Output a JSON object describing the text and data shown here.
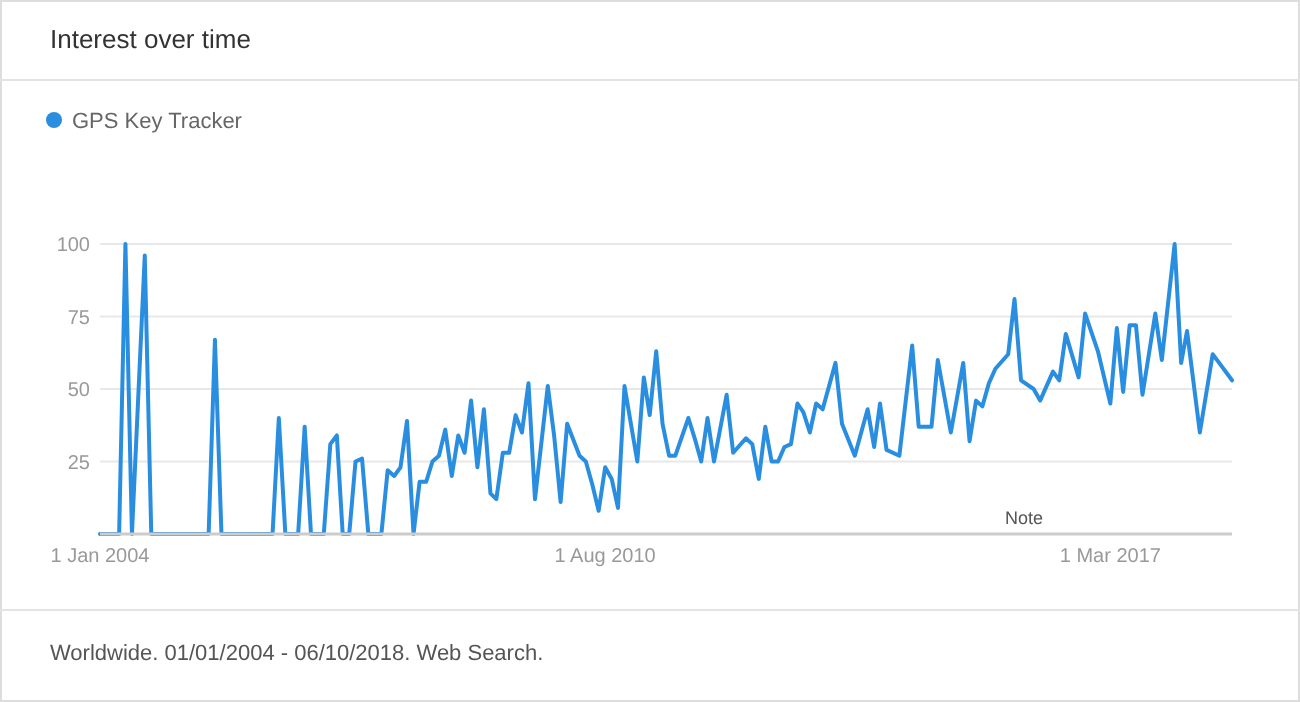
{
  "chart_data": {
    "type": "line",
    "title": "Interest over time",
    "x": [
      "2004-01",
      "2004-04",
      "2004-05",
      "2004-06",
      "2004-08",
      "2004-09",
      "2005-06",
      "2005-07",
      "2005-08",
      "2006-04",
      "2006-05",
      "2006-06",
      "2006-08",
      "2006-09",
      "2006-10",
      "2006-12",
      "2007-01",
      "2007-02",
      "2007-03",
      "2007-04",
      "2007-05",
      "2007-06",
      "2007-07",
      "2007-09",
      "2007-10",
      "2007-11",
      "2007-12",
      "2008-01",
      "2008-02",
      "2008-03",
      "2008-04",
      "2008-05",
      "2008-06",
      "2008-07",
      "2008-08",
      "2008-09",
      "2008-10",
      "2008-11",
      "2008-12",
      "2009-01",
      "2009-02",
      "2009-03",
      "2009-04",
      "2009-05",
      "2009-06",
      "2009-07",
      "2009-08",
      "2009-09",
      "2009-11",
      "2009-12",
      "2010-01",
      "2010-02",
      "2010-04",
      "2010-05",
      "2010-06",
      "2010-07",
      "2010-08",
      "2010-09",
      "2010-10",
      "2010-11",
      "2011-01",
      "2011-02",
      "2011-03",
      "2011-04",
      "2011-05",
      "2011-06",
      "2011-07",
      "2011-09",
      "2011-10",
      "2011-11",
      "2011-12",
      "2012-01",
      "2012-03",
      "2012-04",
      "2012-06",
      "2012-07",
      "2012-08",
      "2012-09",
      "2012-10",
      "2012-11",
      "2012-12",
      "2013-01",
      "2013-02",
      "2013-03",
      "2013-04",
      "2013-05",
      "2013-06",
      "2013-08",
      "2013-09",
      "2013-11",
      "2014-01",
      "2014-02",
      "2014-03",
      "2014-04",
      "2014-06",
      "2014-08",
      "2014-09",
      "2014-11",
      "2014-12",
      "2015-02",
      "2015-04",
      "2015-05",
      "2015-06",
      "2015-07",
      "2015-08",
      "2015-09",
      "2015-11",
      "2015-12",
      "2016-01",
      "2016-03",
      "2016-04",
      "2016-06",
      "2016-07",
      "2016-08",
      "2016-10",
      "2016-11",
      "2017-01",
      "2017-03",
      "2017-04",
      "2017-05",
      "2017-06",
      "2017-07",
      "2017-08",
      "2017-10",
      "2017-11",
      "2018-01",
      "2018-02",
      "2018-03",
      "2018-05",
      "2018-07",
      "2018-08",
      "2018-10"
    ],
    "series": [
      {
        "name": "GPS Key Tracker",
        "color": "#2a8ee0",
        "values": [
          0,
          0,
          100,
          0,
          96,
          0,
          0,
          67,
          0,
          0,
          40,
          0,
          0,
          37,
          0,
          0,
          31,
          34,
          0,
          0,
          25,
          26,
          0,
          0,
          22,
          20,
          23,
          39,
          0,
          18,
          18,
          25,
          27,
          36,
          20,
          34,
          28,
          46,
          23,
          43,
          14,
          12,
          28,
          28,
          41,
          35,
          52,
          12,
          51,
          34,
          11,
          38,
          27,
          25,
          17,
          8,
          23,
          19,
          9,
          51,
          25,
          54,
          41,
          63,
          38,
          27,
          27,
          40,
          33,
          25,
          40,
          25,
          48,
          28,
          33,
          31,
          19,
          37,
          25,
          25,
          30,
          31,
          45,
          42,
          35,
          45,
          43,
          59,
          38,
          27,
          43,
          30,
          45,
          29,
          27,
          65,
          37,
          37,
          60,
          35,
          59,
          32,
          46,
          44,
          52,
          57,
          62,
          81,
          53,
          50,
          46,
          56,
          53,
          69,
          54,
          76,
          63,
          45,
          71,
          49,
          72,
          72,
          48,
          76,
          60,
          100,
          59,
          70,
          35,
          62,
          59,
          53
        ]
      }
    ],
    "xlim": [
      "2004-01",
      "2018-10"
    ],
    "xticks": [
      {
        "value": "2004-01-01",
        "label": "1 Jan 2004"
      },
      {
        "value": "2010-08-01",
        "label": "1 Aug 2010"
      },
      {
        "value": "2017-03-01",
        "label": "1 Mar 2017"
      }
    ],
    "ylim": [
      0,
      100
    ],
    "yticks": [
      25,
      50,
      75,
      100
    ],
    "grid": "y",
    "legend": "top left",
    "marker": "none",
    "line_style": "solid",
    "annotations": [
      "Note",
      "Worldwide. 01/01/2004 - 06/10/2018. Web Search."
    ]
  }
}
